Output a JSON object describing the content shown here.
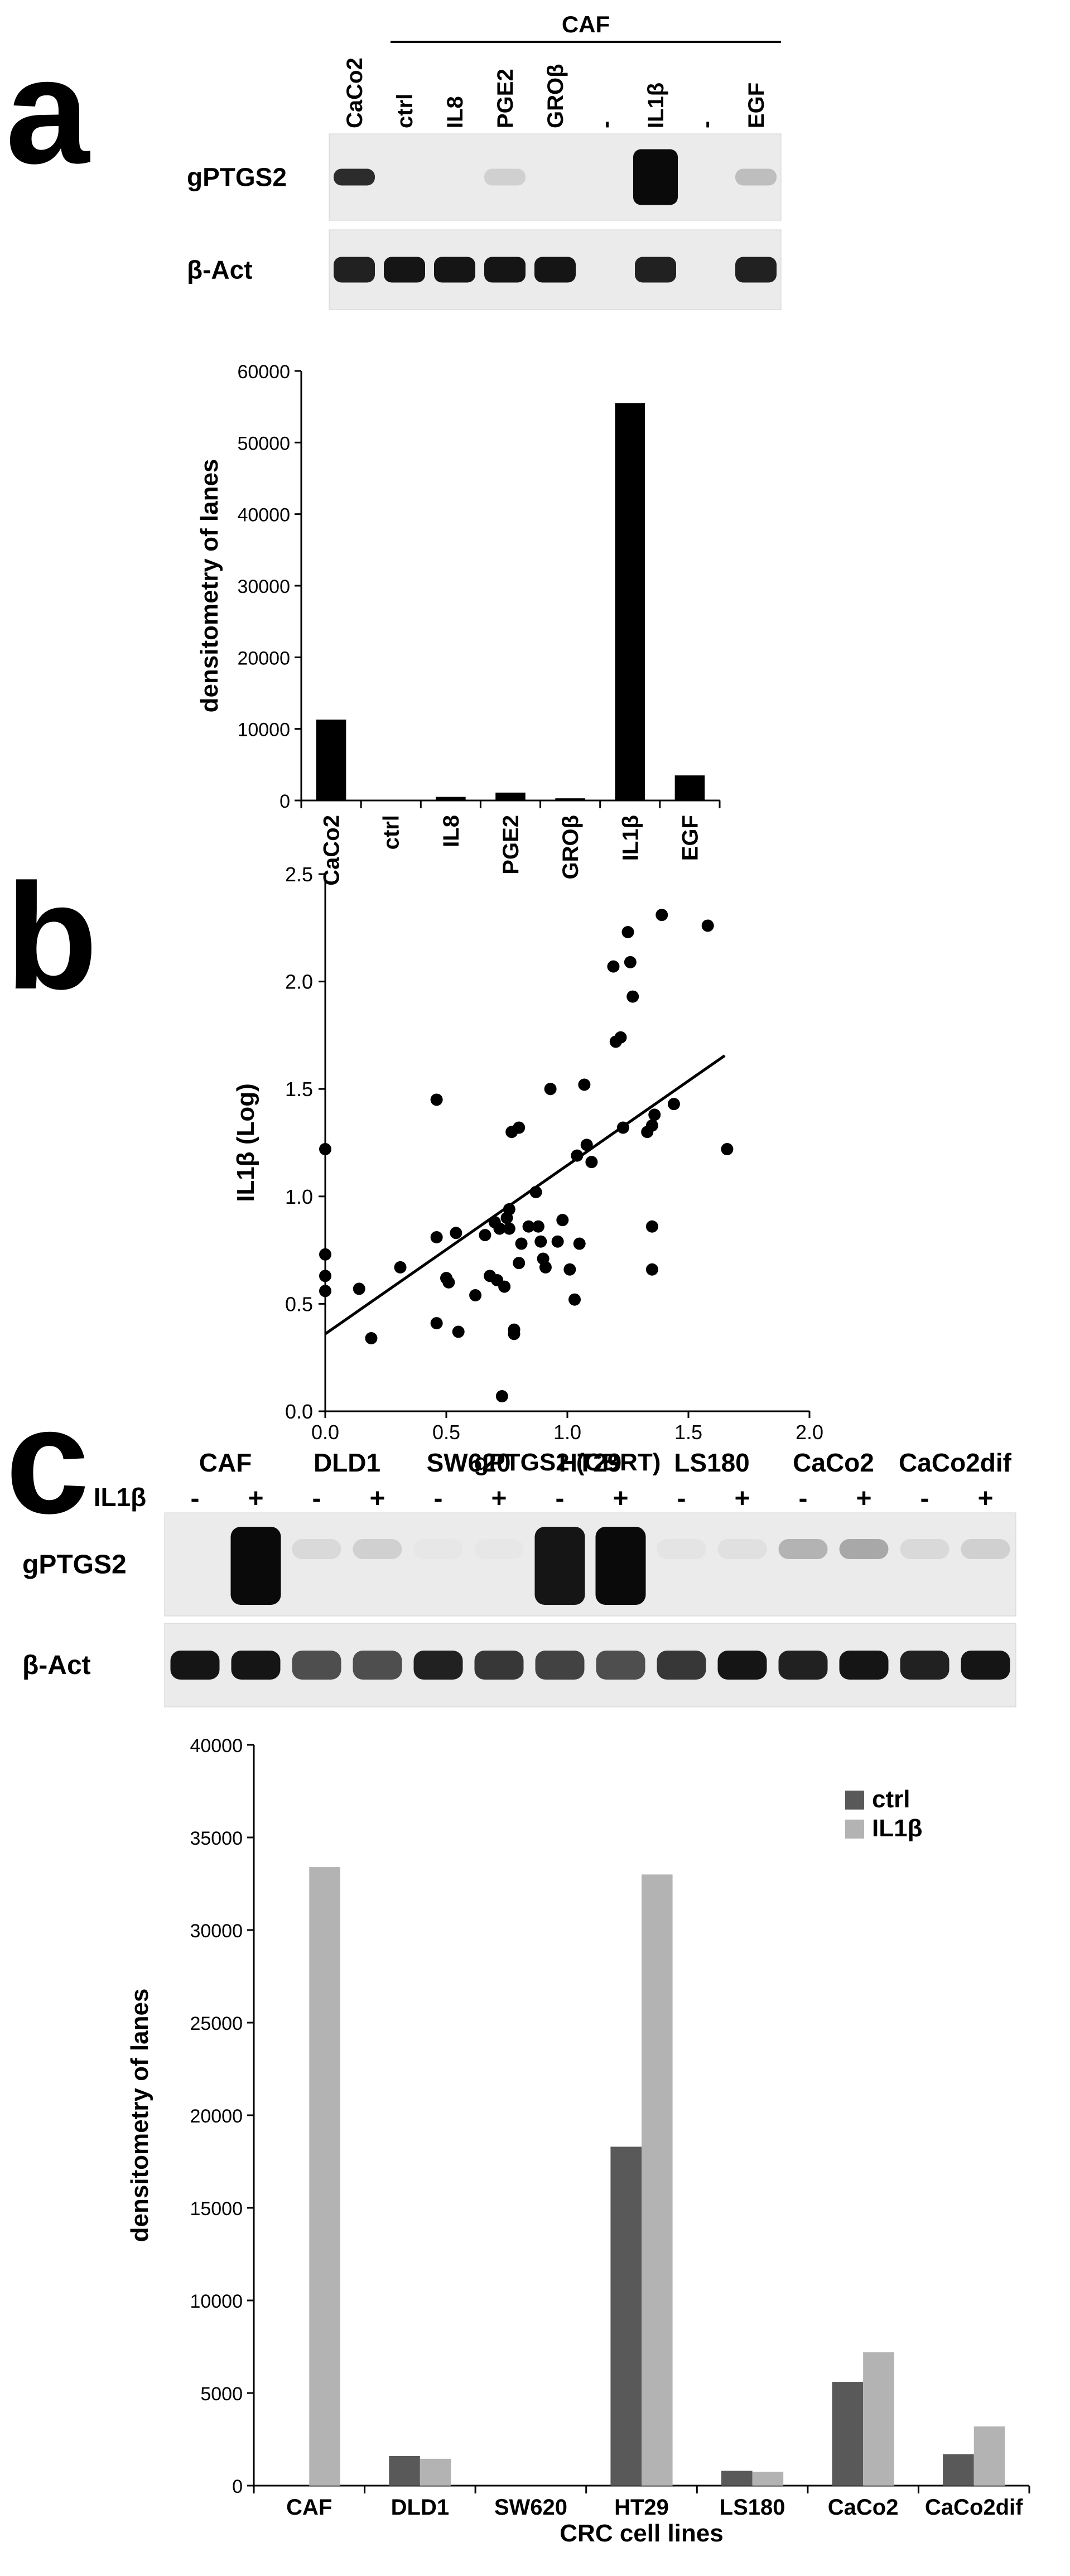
{
  "panels": {
    "a": {
      "letter": "a",
      "blot": {
        "group_label": "CAF",
        "lanes": [
          "CaCo2",
          "ctrl",
          "IL8",
          "PGE2",
          "GROβ",
          "-",
          "IL1β",
          "-",
          "EGF"
        ],
        "rows": [
          "gPTGS2",
          "β-Act"
        ],
        "band_intensity": {
          "gPTGS2": [
            0.85,
            0.0,
            0.0,
            0.12,
            0.0,
            0.0,
            1.0,
            0.0,
            0.2
          ],
          "β-Act": [
            0.9,
            0.95,
            0.95,
            0.95,
            0.95,
            0.0,
            0.9,
            0.0,
            0.9
          ]
        }
      }
    },
    "b": {
      "letter": "b"
    },
    "c": {
      "letter": "c",
      "blot": {
        "treatment_label": "IL1β",
        "lines": [
          "CAF",
          "DLD1",
          "SW620",
          "HT29",
          "LS180",
          "CaCo2",
          "CaCo2dif"
        ],
        "signs": [
          "-",
          "+"
        ],
        "rows": [
          "gPTGS2",
          "β-Act"
        ],
        "band_intensity": {
          "gPTGS2": [
            0.0,
            1.0,
            0.08,
            0.12,
            0.02,
            0.02,
            0.95,
            1.0,
            0.03,
            0.05,
            0.25,
            0.3,
            0.08,
            0.12
          ],
          "β-Act": [
            0.95,
            0.95,
            0.7,
            0.7,
            0.9,
            0.8,
            0.75,
            0.7,
            0.8,
            0.95,
            0.9,
            0.95,
            0.9,
            0.95
          ]
        }
      }
    }
  },
  "chart_data": [
    {
      "id": "a-bar",
      "type": "bar",
      "categories": [
        "CaCo2",
        "ctrl",
        "IL8",
        "PGE2",
        "GROβ",
        "IL1β",
        "EGF"
      ],
      "values": [
        11300,
        0,
        500,
        1100,
        300,
        55500,
        3500
      ],
      "title": "",
      "xlabel": "",
      "ylabel": "densitometry of lanes",
      "ylim": [
        0,
        60000
      ],
      "yticks": [
        "0",
        "10000",
        "20000",
        "30000",
        "40000",
        "50000",
        "60000"
      ],
      "grid": false,
      "color": "#000000"
    },
    {
      "id": "b-scatter",
      "type": "scatter",
      "title": "",
      "xlabel": "gPTGS2 (CBRT)",
      "ylabel": "IL1β (Log)",
      "xlim": [
        0,
        2.0
      ],
      "ylim": [
        0,
        2.5
      ],
      "xticks": [
        "0.0",
        "0.5",
        "1.0",
        "1.5",
        "2.0"
      ],
      "yticks": [
        "0.0",
        "0.5",
        "1.0",
        "1.5",
        "2.0",
        "2.5"
      ],
      "grid": false,
      "trendline": {
        "intercept": 0.36,
        "slope": 0.785,
        "x_start": 0,
        "x_end": 1.65
      },
      "points": [
        [
          0.0,
          1.22
        ],
        [
          0.0,
          0.73
        ],
        [
          0.0,
          0.63
        ],
        [
          0.0,
          0.56
        ],
        [
          0.14,
          0.57
        ],
        [
          0.19,
          0.34
        ],
        [
          0.31,
          0.67
        ],
        [
          0.46,
          1.45
        ],
        [
          0.46,
          0.81
        ],
        [
          0.46,
          0.41
        ],
        [
          0.5,
          0.62
        ],
        [
          0.51,
          0.6
        ],
        [
          0.54,
          0.83
        ],
        [
          0.55,
          0.37
        ],
        [
          0.62,
          0.54
        ],
        [
          0.66,
          0.82
        ],
        [
          0.68,
          0.63
        ],
        [
          0.7,
          0.88
        ],
        [
          0.71,
          0.61
        ],
        [
          0.72,
          0.85
        ],
        [
          0.73,
          0.07
        ],
        [
          0.74,
          0.58
        ],
        [
          0.75,
          0.9
        ],
        [
          0.76,
          0.85
        ],
        [
          0.76,
          0.94
        ],
        [
          0.77,
          1.3
        ],
        [
          0.78,
          0.38
        ],
        [
          0.78,
          0.36
        ],
        [
          0.8,
          0.69
        ],
        [
          0.8,
          1.32
        ],
        [
          0.81,
          0.78
        ],
        [
          0.84,
          0.86
        ],
        [
          0.87,
          1.02
        ],
        [
          0.88,
          0.86
        ],
        [
          0.89,
          0.79
        ],
        [
          0.9,
          0.71
        ],
        [
          0.91,
          0.67
        ],
        [
          0.93,
          1.5
        ],
        [
          0.96,
          0.79
        ],
        [
          0.98,
          0.89
        ],
        [
          1.01,
          0.66
        ],
        [
          1.03,
          0.52
        ],
        [
          1.04,
          1.19
        ],
        [
          1.05,
          0.78
        ],
        [
          1.07,
          1.52
        ],
        [
          1.08,
          1.24
        ],
        [
          1.1,
          1.16
        ],
        [
          1.19,
          2.07
        ],
        [
          1.2,
          1.72
        ],
        [
          1.22,
          1.74
        ],
        [
          1.23,
          1.32
        ],
        [
          1.25,
          2.23
        ],
        [
          1.26,
          2.09
        ],
        [
          1.27,
          1.93
        ],
        [
          1.33,
          1.3
        ],
        [
          1.35,
          1.33
        ],
        [
          1.35,
          0.86
        ],
        [
          1.35,
          0.66
        ],
        [
          1.36,
          1.38
        ],
        [
          1.39,
          2.31
        ],
        [
          1.44,
          1.43
        ],
        [
          1.58,
          2.26
        ],
        [
          1.66,
          1.22
        ]
      ]
    },
    {
      "id": "c-bar",
      "type": "bar",
      "categories": [
        "CAF",
        "DLD1",
        "SW620",
        "HT29",
        "LS180",
        "CaCo2",
        "CaCo2dif"
      ],
      "series": [
        {
          "name": "ctrl",
          "values": [
            0,
            1600,
            0,
            18300,
            800,
            5600,
            1700
          ]
        },
        {
          "name": "IL1β",
          "values": [
            33400,
            1450,
            0,
            33000,
            750,
            7200,
            3200
          ]
        }
      ],
      "colors": [
        "#595959",
        "#b3b3b3"
      ],
      "title": "",
      "xlabel": "CRC cell lines",
      "ylabel": "densitometry of lanes",
      "ylim": [
        0,
        40000
      ],
      "yticks": [
        "0",
        "5000",
        "10000",
        "15000",
        "20000",
        "25000",
        "30000",
        "35000",
        "40000"
      ],
      "grid": false,
      "legend_position": "top-right"
    }
  ]
}
